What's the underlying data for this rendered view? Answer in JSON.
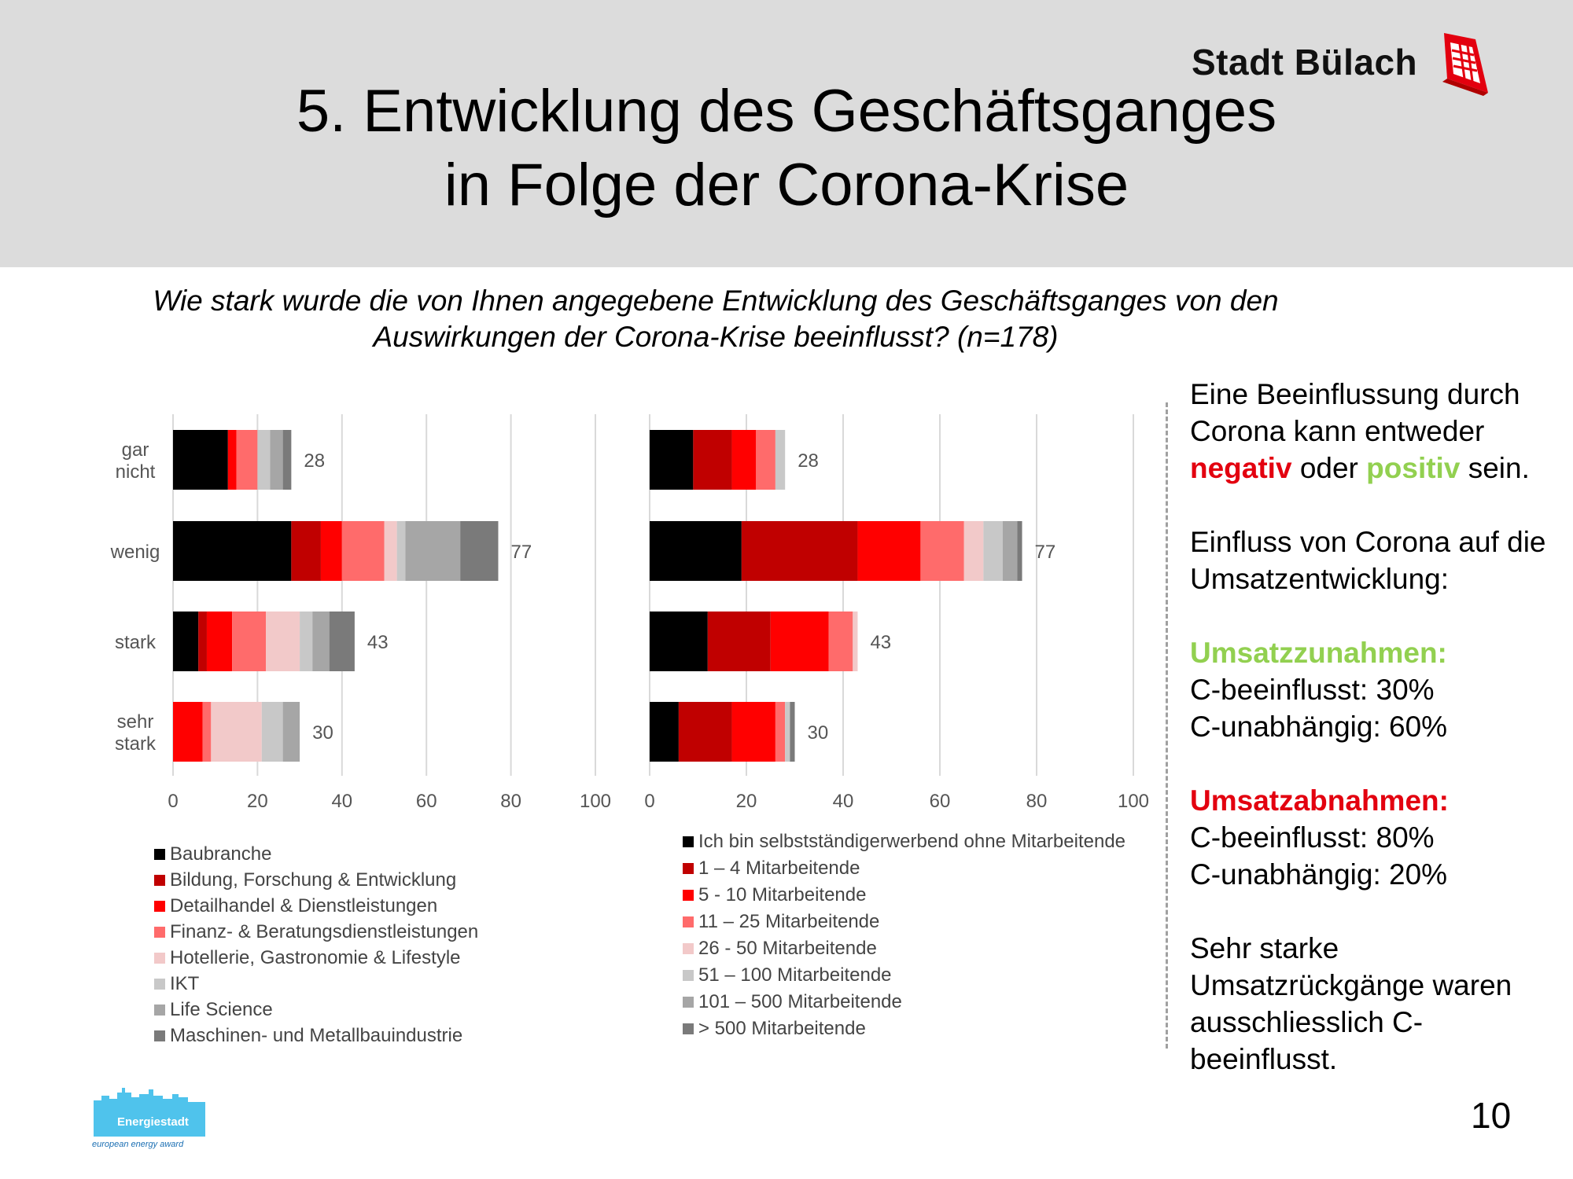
{
  "title": {
    "line1": "5. Entwicklung des Geschäftsganges",
    "line2": "in Folge der Corona-Krise"
  },
  "brand": {
    "name": "Stadt Bülach"
  },
  "question": {
    "line1": "Wie stark wurde die von Ihnen angegebene Entwicklung des Geschäftsganges von den",
    "line2": "Auswirkungen der Corona-Krise beeinflusst? (n=178)"
  },
  "chart_data": [
    {
      "type": "bar",
      "stacked": true,
      "orientation": "horizontal",
      "categories": [
        "gar nicht",
        "wenig",
        "stark",
        "sehr stark"
      ],
      "xlim": [
        0,
        100
      ],
      "xticks": [
        "0",
        "20",
        "40",
        "60",
        "80",
        "100"
      ],
      "grid": true,
      "legend_position": "bottom",
      "series": [
        {
          "name": "Baubranche",
          "color": "#000000",
          "values": [
            13,
            28,
            6,
            0
          ]
        },
        {
          "name": "Bildung, Forschung & Entwicklung",
          "color": "#c00000",
          "values": [
            0,
            7,
            2,
            0
          ]
        },
        {
          "name": "Detailhandel & Dienstleistungen",
          "color": "#ff0000",
          "values": [
            2,
            5,
            6,
            7
          ]
        },
        {
          "name": "Finanz- & Beratungsdienstleistungen",
          "color": "#ff6b6b",
          "values": [
            5,
            10,
            8,
            2
          ]
        },
        {
          "name": "Hotellerie, Gastronomie & Lifestyle",
          "color": "#f2c9c9",
          "values": [
            0,
            3,
            8,
            12
          ]
        },
        {
          "name": "IKT",
          "color": "#c8c8c8",
          "values": [
            3,
            2,
            3,
            5
          ]
        },
        {
          "name": "Life Science",
          "color": "#a6a6a6",
          "values": [
            3,
            13,
            4,
            4
          ]
        },
        {
          "name": "Maschinen- und Metallbauindustrie",
          "color": "#7a7a7a",
          "values": [
            2,
            9,
            6,
            0
          ]
        }
      ],
      "totals": [
        "28",
        "77",
        "43",
        "30"
      ]
    },
    {
      "type": "bar",
      "stacked": true,
      "orientation": "horizontal",
      "categories": [
        "gar nicht",
        "wenig",
        "stark",
        "sehr stark"
      ],
      "xlim": [
        0,
        100
      ],
      "xticks": [
        "0",
        "20",
        "40",
        "60",
        "80",
        "100"
      ],
      "grid": true,
      "legend_position": "bottom",
      "series": [
        {
          "name": "Ich bin selbstständigerwerbend ohne Mitarbeitende",
          "color": "#000000",
          "values": [
            9,
            19,
            12,
            6
          ]
        },
        {
          "name": "1 – 4 Mitarbeitende",
          "color": "#c00000",
          "values": [
            8,
            24,
            13,
            11
          ]
        },
        {
          "name": "5 - 10 Mitarbeitende",
          "color": "#ff0000",
          "values": [
            5,
            13,
            12,
            9
          ]
        },
        {
          "name": "11 – 25 Mitarbeitende",
          "color": "#ff6b6b",
          "values": [
            4,
            9,
            5,
            2
          ]
        },
        {
          "name": "26 - 50 Mitarbeitende",
          "color": "#f2c9c9",
          "values": [
            0,
            4,
            1,
            0
          ]
        },
        {
          "name": "51 – 100 Mitarbeitende",
          "color": "#c8c8c8",
          "values": [
            2,
            4,
            0,
            1
          ]
        },
        {
          "name": "101 – 500 Mitarbeitende",
          "color": "#a6a6a6",
          "values": [
            0,
            3,
            0,
            0
          ]
        },
        {
          "name": "> 500 Mitarbeitende",
          "color": "#7a7a7a",
          "values": [
            0,
            1,
            0,
            1
          ]
        }
      ],
      "totals": [
        "28",
        "77",
        "43",
        "30"
      ]
    }
  ],
  "sidebar": {
    "intro_a": "Eine Beeinflussung durch Corona kann entweder",
    "negativ": "negativ",
    "oder": "oder",
    "positiv": "positiv",
    "sein": "sein.",
    "einfluss": "Einfluss von Corona auf die Umsatzentwicklung:",
    "zunahmen_heading": "Umsatzzunahmen:",
    "zunahmen_line1": "C-beeinflusst: 30%",
    "zunahmen_line2": "C-unabhängig: 60%",
    "abnahmen_heading": "Umsatzabnahmen:",
    "abnahmen_line1": "C-beeinflusst: 80%",
    "abnahmen_line2": "C-unabhängig: 20%",
    "conclusion": "Sehr starke Umsatzrückgänge waren ausschliesslich C-beeinflusst."
  },
  "logo_bottom": {
    "name": "Energiestadt",
    "tagline": "european energy award"
  },
  "page_number": "10"
}
